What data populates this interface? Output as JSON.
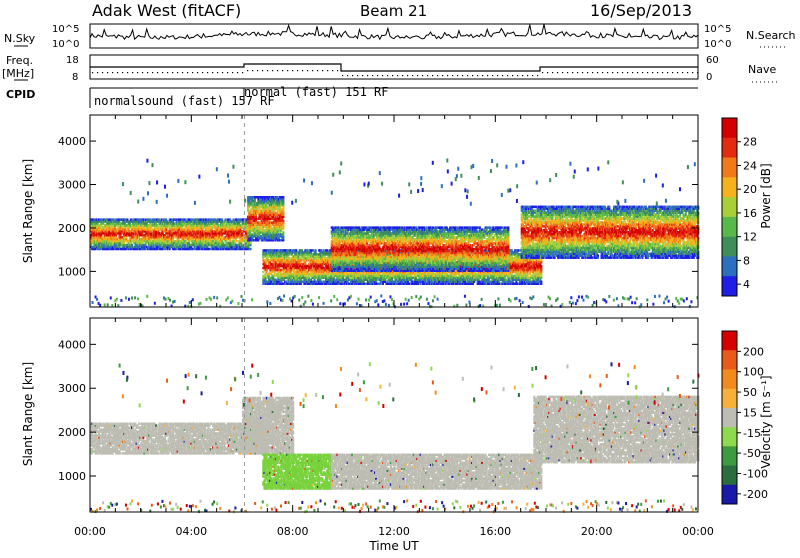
{
  "header": {
    "station": "Adak West (fitACF)",
    "beam": "Beam 21",
    "date": "16/Sep/2013"
  },
  "top_panels": {
    "nsky_label": "N.Sky",
    "nsky_ticks": [
      "10^5",
      "10^0"
    ],
    "nsearch_label": "N.Search",
    "freq_label": "Freq.",
    "freq_unit": "[MHz]",
    "freq_ticks": [
      "18",
      "8"
    ],
    "nave_label": "Nave",
    "nave_ticks": [
      "60",
      "0"
    ],
    "cpid_label": "CPID",
    "cpid_segments": [
      {
        "text": "normalsound (fast) 157 RF",
        "start_hour": 0
      },
      {
        "text": "normal (fast) 151 RF",
        "start_hour": 6.1
      }
    ]
  },
  "chart_data": [
    {
      "type": "heatmap",
      "title": "Power",
      "xlabel": "Time UT",
      "ylabel": "Slant Range [km]",
      "colorbar_label": "Power [dB]",
      "colorbar_ticks": [
        "28",
        "24",
        "20",
        "16",
        "12",
        "8",
        "4"
      ],
      "xlim": [
        0,
        24
      ],
      "ylim": [
        180,
        4600
      ],
      "yticks": [
        "4000",
        "3000",
        "2000",
        "1000"
      ],
      "xticks": [
        "00:00",
        "04:00",
        "08:00",
        "12:00",
        "16:00",
        "20:00",
        "00:00"
      ],
      "bands": [
        {
          "t0": 0.0,
          "t1": 6.3,
          "r0": 1500,
          "r1": 2200
        },
        {
          "t0": 6.2,
          "t1": 7.6,
          "r0": 1700,
          "r1": 2700
        },
        {
          "t0": 6.8,
          "t1": 17.8,
          "r0": 700,
          "r1": 1500
        },
        {
          "t0": 9.5,
          "t1": 16.5,
          "r0": 1000,
          "r1": 2000
        },
        {
          "t0": 17.0,
          "t1": 24.0,
          "r0": 1300,
          "r1": 2500
        }
      ]
    },
    {
      "type": "heatmap",
      "title": "Velocity",
      "xlabel": "Time UT",
      "ylabel": "Slant Range [km]",
      "colorbar_label": "Velocity [m s⁻¹]",
      "colorbar_ticks": [
        "200",
        "100",
        "50",
        "15",
        "-15",
        "-50",
        "-100",
        "-200"
      ],
      "xlim": [
        0,
        24
      ],
      "ylim": [
        180,
        4600
      ],
      "yticks": [
        "4000",
        "3000",
        "2000",
        "1000"
      ],
      "xticks": [
        "00:00",
        "04:00",
        "08:00",
        "12:00",
        "16:00",
        "20:00",
        "00:00"
      ],
      "regions": [
        {
          "t0": 0.0,
          "t1": 7.0,
          "r0": 1500,
          "r1": 2200,
          "velocity": "gray"
        },
        {
          "t0": 6.0,
          "t1": 8.0,
          "r0": 1500,
          "r1": 2800,
          "velocity": "gray"
        },
        {
          "t0": 6.8,
          "t1": 9.5,
          "r0": 700,
          "r1": 1500,
          "velocity": "green"
        },
        {
          "t0": 9.5,
          "t1": 17.8,
          "r0": 700,
          "r1": 1500,
          "velocity": "gray"
        },
        {
          "t0": 17.5,
          "t1": 24.0,
          "r0": 1300,
          "r1": 2800,
          "velocity": "gray"
        }
      ]
    }
  ],
  "colors": {
    "power": [
      "#1e1ee6",
      "#2d6fbf",
      "#3f8e5a",
      "#59b84a",
      "#a8cf3a",
      "#f5b21c",
      "#f07a1a",
      "#e52a12",
      "#d40000"
    ],
    "velocity": [
      "#1a1aa8",
      "#2a6e3e",
      "#3e9a3e",
      "#8ed94e",
      "#bdbdb4",
      "#f7b13a",
      "#f28a1e",
      "#e85a1a",
      "#d60000"
    ],
    "gray": "#bdbdb4",
    "green": "#78d23c"
  }
}
